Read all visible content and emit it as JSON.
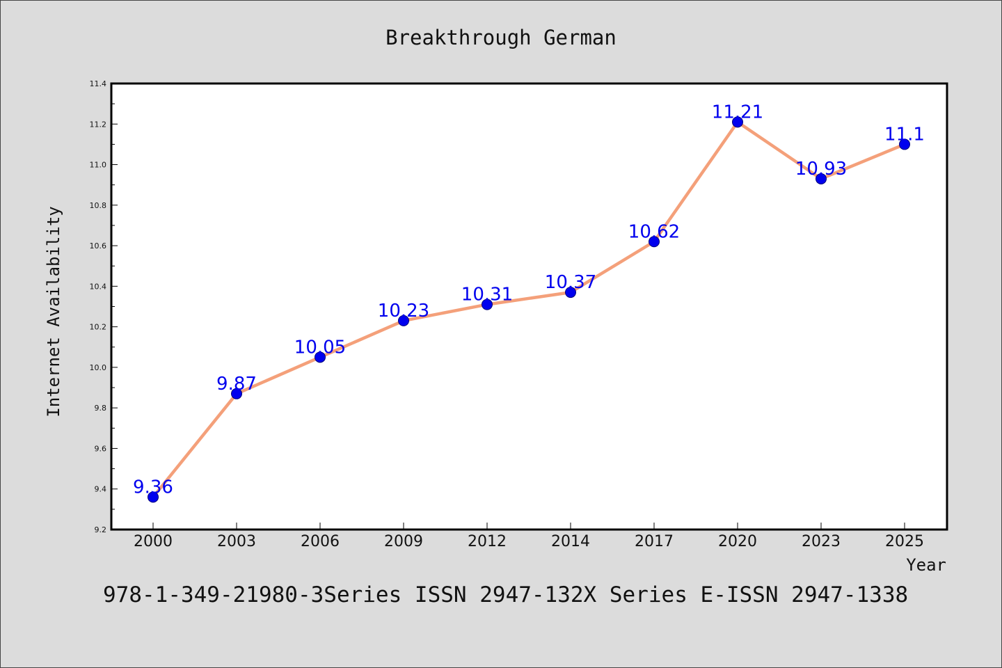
{
  "chart_data": {
    "type": "line",
    "title": "Breakthrough German",
    "xlabel": "Year",
    "ylabel": "Internet Availability",
    "categories": [
      "2000",
      "2003",
      "2006",
      "2009",
      "2012",
      "2014",
      "2017",
      "2020",
      "2023",
      "2025"
    ],
    "series": [
      {
        "values": [
          9.36,
          9.87,
          10.05,
          10.23,
          10.31,
          10.37,
          10.62,
          11.21,
          10.93,
          11.1
        ],
        "data_labels": [
          "9.36",
          "9.87",
          "10.05",
          "10.23",
          "10.31",
          "10.37",
          "10.62",
          "11.21",
          "10.93",
          "11.1"
        ],
        "line_color": "#f4a07a",
        "marker_color": "#0000ee"
      }
    ],
    "yticks": [
      "9.2",
      "9.4",
      "9.6",
      "9.8",
      "10.0",
      "10.2",
      "10.4",
      "10.6",
      "10.8",
      "11.0",
      "11.2",
      "11.4"
    ],
    "ylim": [
      9.2,
      11.4
    ],
    "grid": false,
    "legend": "none"
  },
  "footer": "978-1-349-21980-3Series ISSN 2947-132X Series E-ISSN 2947-1338",
  "colors": {
    "background": "#dcdcdc",
    "plot_background": "#ffffff",
    "axis": "#000000"
  }
}
